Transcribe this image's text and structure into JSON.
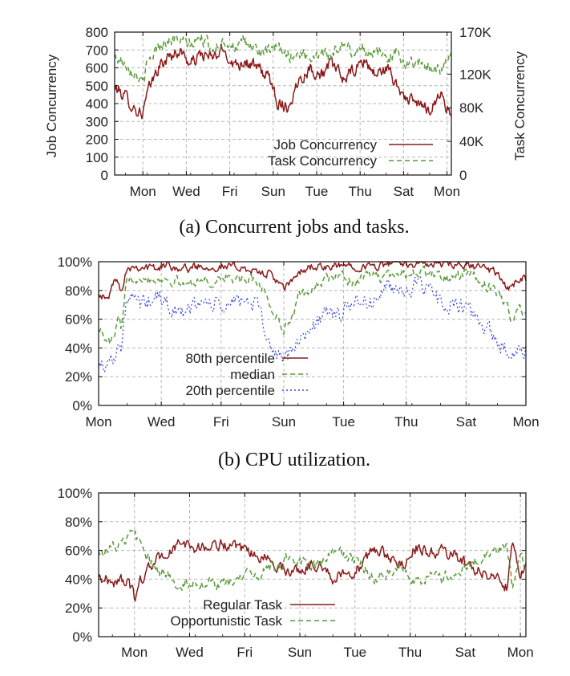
{
  "colors": {
    "red": "#8b1a1a",
    "green": "#5a9a3a",
    "blue": "#3344dd",
    "grid": "#b8b8b8",
    "frame": "#111111"
  },
  "chart_data": [
    {
      "type": "line",
      "caption": "(a) Concurrent jobs and tasks.",
      "ylabel": "Job Concurrency",
      "y2label": "Task Concurrency",
      "ylim": [
        0,
        800
      ],
      "yticks": [
        "0",
        "100",
        "200",
        "300",
        "400",
        "500",
        "600",
        "700",
        "800"
      ],
      "y2lim": [
        0,
        170
      ],
      "y2ticks": [
        {
          "v": 0,
          "label": "0"
        },
        {
          "v": 40,
          "label": "40K"
        },
        {
          "v": 80,
          "label": "80K"
        },
        {
          "v": 120,
          "label": "120K"
        },
        {
          "v": 170,
          "label": "170K"
        }
      ],
      "x_range_days": [
        -0.5,
        15
      ],
      "xtick_labels": [
        {
          "day": 0.8,
          "label": "Mon"
        },
        {
          "day": 2.8,
          "label": "Wed"
        },
        {
          "day": 4.8,
          "label": "Fri"
        },
        {
          "day": 6.8,
          "label": "Sun"
        },
        {
          "day": 8.8,
          "label": "Tue"
        },
        {
          "day": 10.8,
          "label": "Thu"
        },
        {
          "day": 12.8,
          "label": "Sat"
        },
        {
          "day": 14.8,
          "label": "Mon"
        }
      ],
      "grid": true,
      "legend": "bottom-right",
      "series": [
        {
          "name": "Job Concurrency",
          "style": "solid",
          "color": "#8b1a1a",
          "axis": "left",
          "x": [
            -0.5,
            0,
            0.5,
            0.8,
            1,
            1.5,
            2,
            2.5,
            3,
            3.5,
            4,
            4.5,
            5,
            5.5,
            6,
            6.5,
            6.8,
            7,
            7.5,
            8,
            8.5,
            9,
            9.5,
            10,
            10.5,
            11,
            11.5,
            12,
            12.5,
            13,
            13.5,
            14,
            14.5,
            15
          ],
          "y": [
            490,
            440,
            360,
            350,
            450,
            600,
            660,
            700,
            620,
            680,
            650,
            700,
            620,
            640,
            600,
            560,
            490,
            410,
            380,
            540,
            600,
            560,
            620,
            540,
            580,
            640,
            560,
            600,
            500,
            420,
            390,
            370,
            460,
            330
          ],
          "noise": 30
        },
        {
          "name": "Task Concurrency",
          "style": "dashed",
          "color": "#5a9a3a",
          "axis": "right",
          "x": [
            -0.5,
            0,
            0.5,
            0.8,
            1,
            1.5,
            2,
            2.5,
            3,
            3.5,
            4,
            4.5,
            5,
            5.5,
            6,
            6.5,
            7,
            7.5,
            8,
            8.5,
            9,
            9.5,
            10,
            10.5,
            11,
            11.5,
            12,
            12.5,
            13,
            13.5,
            14,
            14.5,
            15
          ],
          "y": [
            140,
            134,
            120,
            108,
            130,
            155,
            160,
            161,
            154,
            163,
            150,
            160,
            153,
            157,
            150,
            145,
            151,
            142,
            145,
            140,
            148,
            142,
            155,
            146,
            150,
            146,
            140,
            145,
            132,
            135,
            130,
            125,
            140
          ],
          "noise": 6
        }
      ]
    },
    {
      "type": "line",
      "caption": "(b) CPU utilization.",
      "ylim": [
        0,
        100
      ],
      "yticks": [
        "0%",
        "20%",
        "40%",
        "60%",
        "80%",
        "100%"
      ],
      "x_range_days": [
        0,
        15
      ],
      "xtick_labels": [
        {
          "day": 0,
          "label": "Mon"
        },
        {
          "day": 2.2,
          "label": "Wed"
        },
        {
          "day": 4.3,
          "label": "Fri"
        },
        {
          "day": 6.5,
          "label": "Sun"
        },
        {
          "day": 8.6,
          "label": "Tue"
        },
        {
          "day": 10.8,
          "label": "Thu"
        },
        {
          "day": 12.9,
          "label": "Sat"
        },
        {
          "day": 15,
          "label": "Mon"
        }
      ],
      "grid": true,
      "legend": "bottom-left",
      "series": [
        {
          "name": "80th percentile",
          "style": "solid",
          "color": "#8b1a1a",
          "x": [
            0,
            0.3,
            0.5,
            0.7,
            0.8,
            1,
            1.5,
            2,
            2.5,
            3,
            3.5,
            4,
            4.5,
            5,
            5.5,
            6,
            6.2,
            6.5,
            7,
            7.5,
            8,
            8.5,
            9,
            9.5,
            10,
            10.5,
            11,
            11.5,
            12,
            12.5,
            13,
            13.5,
            14,
            14.2,
            14.5,
            14.8,
            15
          ],
          "y": [
            80,
            72,
            85,
            88,
            80,
            97,
            97,
            95,
            98,
            95,
            97,
            97,
            96,
            97,
            92,
            92,
            88,
            80,
            92,
            97,
            95,
            97,
            98,
            96,
            98,
            99,
            99,
            98,
            98,
            97,
            97,
            96,
            92,
            85,
            80,
            90,
            88
          ],
          "noise": 2.5
        },
        {
          "name": "median",
          "style": "dashed",
          "color": "#5a9a3a",
          "x": [
            0,
            0.3,
            0.5,
            0.7,
            0.8,
            1,
            1.5,
            2,
            2.5,
            3,
            3.5,
            4,
            4.5,
            5,
            5.5,
            5.8,
            6,
            6.2,
            6.5,
            6.8,
            7,
            7.5,
            8,
            8.5,
            9,
            9.5,
            10,
            10.5,
            11,
            11.5,
            12,
            12.5,
            13,
            13.5,
            14,
            14.3,
            14.5,
            14.8,
            15
          ],
          "y": [
            55,
            43,
            45,
            60,
            50,
            90,
            90,
            88,
            88,
            84,
            88,
            85,
            90,
            86,
            88,
            80,
            72,
            62,
            55,
            60,
            75,
            82,
            88,
            90,
            86,
            92,
            88,
            92,
            93,
            92,
            90,
            88,
            92,
            85,
            78,
            70,
            60,
            68,
            65
          ],
          "noise": 3
        },
        {
          "name": "20th percentile",
          "style": "dotted",
          "color": "#3344dd",
          "x": [
            0,
            0.3,
            0.5,
            0.7,
            0.8,
            1,
            1.5,
            2,
            2.5,
            3,
            3.5,
            4,
            4.5,
            5,
            5.5,
            5.8,
            6,
            6.2,
            6.5,
            6.8,
            7,
            7.5,
            8,
            8.5,
            9,
            9.5,
            10,
            10.5,
            11,
            11.5,
            12,
            12.5,
            13,
            13.5,
            14,
            14.3,
            14.5,
            14.8,
            15
          ],
          "y": [
            30,
            28,
            35,
            42,
            38,
            75,
            70,
            75,
            70,
            62,
            72,
            70,
            68,
            75,
            70,
            55,
            42,
            36,
            34,
            35,
            45,
            55,
            65,
            62,
            75,
            70,
            80,
            82,
            82,
            80,
            72,
            70,
            65,
            55,
            45,
            38,
            36,
            40,
            40
          ],
          "noise": 5
        }
      ]
    },
    {
      "type": "line",
      "ylim": [
        0,
        100
      ],
      "yticks": [
        "0%",
        "20%",
        "40%",
        "60%",
        "80%",
        "100%"
      ],
      "x_range_days": [
        -0.5,
        15
      ],
      "xtick_labels": [
        {
          "day": 0.8,
          "label": "Mon"
        },
        {
          "day": 2.8,
          "label": "Wed"
        },
        {
          "day": 4.8,
          "label": "Fri"
        },
        {
          "day": 6.8,
          "label": "Sun"
        },
        {
          "day": 8.8,
          "label": "Tue"
        },
        {
          "day": 10.8,
          "label": "Thu"
        },
        {
          "day": 12.8,
          "label": "Sat"
        },
        {
          "day": 14.8,
          "label": "Mon"
        }
      ],
      "grid": true,
      "legend": "bottom-left",
      "series": [
        {
          "name": "Regular Task",
          "style": "solid",
          "color": "#8b1a1a",
          "x": [
            -0.5,
            0,
            0.5,
            0.8,
            1,
            1.5,
            2,
            2.5,
            3,
            3.5,
            4,
            4.5,
            5,
            5.5,
            6,
            6.5,
            7,
            7.5,
            8,
            8.5,
            9,
            9.5,
            10,
            10.5,
            11,
            11.5,
            12,
            12.5,
            13,
            13.5,
            14,
            14.3,
            14.5,
            14.8,
            15
          ],
          "y": [
            42,
            38,
            40,
            27,
            38,
            52,
            58,
            65,
            62,
            62,
            65,
            60,
            58,
            55,
            50,
            45,
            48,
            52,
            40,
            45,
            48,
            62,
            55,
            50,
            62,
            58,
            60,
            55,
            48,
            45,
            40,
            35,
            65,
            45,
            50
          ],
          "noise": 3.5
        },
        {
          "name": "Opportunistic Task",
          "style": "dashed",
          "color": "#5a9a3a",
          "x": [
            -0.5,
            0,
            0.5,
            0.8,
            1,
            1.5,
            2,
            2.5,
            3,
            3.5,
            4,
            4.5,
            5,
            5.5,
            6,
            6.5,
            7,
            7.5,
            8,
            8.5,
            9,
            9.5,
            10,
            10.5,
            11,
            11.5,
            12,
            12.5,
            13,
            13.5,
            14,
            14.3,
            14.5,
            14.8,
            15
          ],
          "y": [
            60,
            62,
            65,
            75,
            62,
            48,
            42,
            36,
            38,
            38,
            35,
            40,
            42,
            45,
            50,
            55,
            52,
            48,
            60,
            55,
            52,
            38,
            45,
            50,
            38,
            42,
            40,
            45,
            52,
            55,
            60,
            65,
            35,
            55,
            50
          ],
          "noise": 3.5
        }
      ]
    }
  ]
}
